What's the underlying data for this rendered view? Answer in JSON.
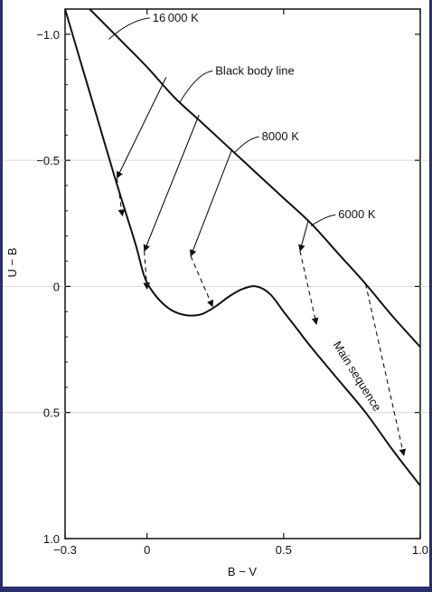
{
  "chart_data": {
    "type": "line",
    "title": "",
    "xlabel": "B − V",
    "ylabel": "U − B",
    "xlim": [
      -0.3,
      1.0
    ],
    "ylim": [
      -1.1,
      1.0
    ],
    "y_inverted": true,
    "grid": false,
    "x_ticks": [
      {
        "value": -0.3,
        "label": "−0.3"
      },
      {
        "value": 0,
        "label": "0"
      },
      {
        "value": 0.5,
        "label": "0.5"
      },
      {
        "value": 1.0,
        "label": "1.0"
      }
    ],
    "y_ticks": [
      {
        "value": -1.0,
        "label": "−1.0"
      },
      {
        "value": -0.5,
        "label": "−0.5"
      },
      {
        "value": 0,
        "label": "0"
      },
      {
        "value": 0.5,
        "label": "0.5"
      },
      {
        "value": 1.0,
        "label": "1.0"
      }
    ],
    "series": [
      {
        "name": "Black body line",
        "x": [
          -0.21,
          -0.1,
          0.0,
          0.1,
          0.2,
          0.3,
          0.4,
          0.5,
          0.6,
          0.7,
          0.8,
          0.9,
          1.0
        ],
        "y": [
          -1.1,
          -0.98,
          -0.87,
          -0.75,
          -0.65,
          -0.55,
          -0.45,
          -0.35,
          -0.25,
          -0.13,
          -0.01,
          0.12,
          0.24
        ]
      },
      {
        "name": "Main sequence",
        "x": [
          -0.3,
          -0.24,
          -0.18,
          -0.12,
          -0.08,
          -0.04,
          -0.01,
          0.02,
          0.06,
          0.1,
          0.15,
          0.2,
          0.25,
          0.3,
          0.35,
          0.4,
          0.45,
          0.5,
          0.55,
          0.6,
          0.7,
          0.8,
          0.9,
          1.0
        ],
        "y": [
          -1.1,
          -0.88,
          -0.66,
          -0.44,
          -0.3,
          -0.16,
          -0.04,
          0.02,
          0.07,
          0.1,
          0.115,
          0.11,
          0.08,
          0.04,
          0.01,
          0.0,
          0.03,
          0.1,
          0.17,
          0.24,
          0.37,
          0.5,
          0.65,
          0.79
        ]
      }
    ],
    "arrows": [
      {
        "from": [
          0.07,
          -0.83
        ],
        "to": [
          -0.11,
          -0.43
        ],
        "style": "solid"
      },
      {
        "from": [
          -0.11,
          -0.43
        ],
        "to": [
          -0.09,
          -0.28
        ],
        "style": "dashed"
      },
      {
        "from": [
          0.19,
          -0.68
        ],
        "to": [
          -0.01,
          -0.14
        ],
        "style": "solid"
      },
      {
        "from": [
          -0.01,
          -0.14
        ],
        "to": [
          0.0,
          0.01
        ],
        "style": "dashed"
      },
      {
        "from": [
          0.31,
          -0.54
        ],
        "to": [
          0.16,
          -0.12
        ],
        "style": "solid"
      },
      {
        "from": [
          0.16,
          -0.12
        ],
        "to": [
          0.24,
          0.08
        ],
        "style": "dashed"
      },
      {
        "from": [
          0.59,
          -0.26
        ],
        "to": [
          0.56,
          -0.14
        ],
        "style": "solid"
      },
      {
        "from": [
          0.56,
          -0.14
        ],
        "to": [
          0.62,
          0.15
        ],
        "style": "dashed"
      },
      {
        "from": [
          0.8,
          -0.01
        ],
        "to": [
          0.94,
          0.67
        ],
        "style": "dashed"
      }
    ],
    "annotations": [
      {
        "text": "16 000 K",
        "x": 0.02,
        "y": -1.05,
        "target": [
          -0.14,
          -0.98
        ]
      },
      {
        "text": "Black body line",
        "x": 0.25,
        "y": -0.84,
        "target": [
          0.12,
          -0.73
        ]
      },
      {
        "text": "8000 K",
        "x": 0.42,
        "y": -0.58,
        "target": [
          0.32,
          -0.53
        ]
      },
      {
        "text": "6000 K",
        "x": 0.7,
        "y": -0.27,
        "target": [
          0.6,
          -0.24
        ]
      },
      {
        "text": "Main sequence",
        "x": 0.68,
        "y": 0.23,
        "rotate": 58
      }
    ]
  }
}
